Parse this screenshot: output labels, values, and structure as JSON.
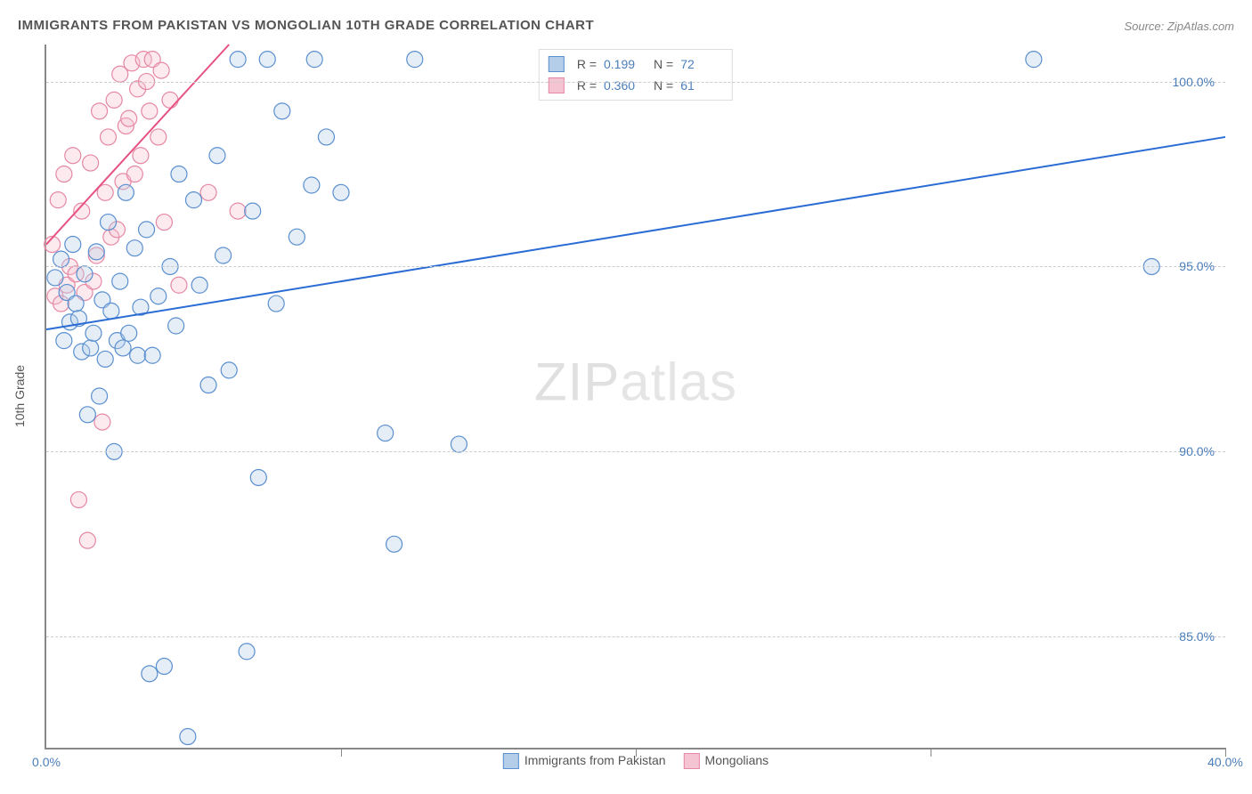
{
  "title": "IMMIGRANTS FROM PAKISTAN VS MONGOLIAN 10TH GRADE CORRELATION CHART",
  "source": "Source: ZipAtlas.com",
  "watermark_bold": "ZIP",
  "watermark_thin": "atlas",
  "chart": {
    "type": "scatter",
    "xlim": [
      0,
      40
    ],
    "ylim": [
      82,
      101
    ],
    "x_ticks": [
      0,
      10,
      20,
      30,
      40
    ],
    "x_tick_labels": [
      "0.0%",
      "",
      "",
      "",
      "40.0%"
    ],
    "y_ticks": [
      85,
      90,
      95,
      100
    ],
    "y_tick_labels": [
      "85.0%",
      "90.0%",
      "95.0%",
      "100.0%"
    ],
    "y_axis_label": "10th Grade",
    "grid_color": "#cccccc",
    "background_color": "#ffffff",
    "marker_radius": 9,
    "marker_opacity": 0.35,
    "line_width": 2,
    "series": [
      {
        "name": "Immigrants from Pakistan",
        "color_fill": "#b4cde8",
        "color_stroke": "#5a8fd0",
        "line_color": "#2a6cd4",
        "R": "0.199",
        "N": "72",
        "trend": {
          "x1": 0,
          "y1": 93.3,
          "x2": 40,
          "y2": 98.5
        },
        "points": [
          [
            0.3,
            94.7
          ],
          [
            0.5,
            95.2
          ],
          [
            0.6,
            93.0
          ],
          [
            0.7,
            94.3
          ],
          [
            0.8,
            93.5
          ],
          [
            0.9,
            95.6
          ],
          [
            1.0,
            94.0
          ],
          [
            1.1,
            93.6
          ],
          [
            1.2,
            92.7
          ],
          [
            1.3,
            94.8
          ],
          [
            1.4,
            91.0
          ],
          [
            1.5,
            92.8
          ],
          [
            1.6,
            93.2
          ],
          [
            1.7,
            95.4
          ],
          [
            1.8,
            91.5
          ],
          [
            1.9,
            94.1
          ],
          [
            2.0,
            92.5
          ],
          [
            2.1,
            96.2
          ],
          [
            2.2,
            93.8
          ],
          [
            2.3,
            90.0
          ],
          [
            2.4,
            93.0
          ],
          [
            2.5,
            94.6
          ],
          [
            2.6,
            92.8
          ],
          [
            2.7,
            97.0
          ],
          [
            2.8,
            93.2
          ],
          [
            3.0,
            95.5
          ],
          [
            3.1,
            92.6
          ],
          [
            3.2,
            93.9
          ],
          [
            3.4,
            96.0
          ],
          [
            3.5,
            84.0
          ],
          [
            3.6,
            92.6
          ],
          [
            3.8,
            94.2
          ],
          [
            4.0,
            84.2
          ],
          [
            4.2,
            95.0
          ],
          [
            4.4,
            93.4
          ],
          [
            4.5,
            97.5
          ],
          [
            4.8,
            82.3
          ],
          [
            5.0,
            96.8
          ],
          [
            5.2,
            94.5
          ],
          [
            5.5,
            91.8
          ],
          [
            5.8,
            98.0
          ],
          [
            6.0,
            95.3
          ],
          [
            6.2,
            92.2
          ],
          [
            6.5,
            100.6
          ],
          [
            6.8,
            84.6
          ],
          [
            7.0,
            96.5
          ],
          [
            7.2,
            89.3
          ],
          [
            7.5,
            100.6
          ],
          [
            7.8,
            94.0
          ],
          [
            8.0,
            99.2
          ],
          [
            8.5,
            95.8
          ],
          [
            9.0,
            97.2
          ],
          [
            9.1,
            100.6
          ],
          [
            9.5,
            98.5
          ],
          [
            10.0,
            97.0
          ],
          [
            11.5,
            90.5
          ],
          [
            11.8,
            87.5
          ],
          [
            12.5,
            100.6
          ],
          [
            14.0,
            90.2
          ],
          [
            33.5,
            100.6
          ],
          [
            37.5,
            95.0
          ]
        ]
      },
      {
        "name": "Mongolians",
        "color_fill": "#f5c4d2",
        "color_stroke": "#e687a3",
        "line_color": "#e65284",
        "R": "0.360",
        "N": "61",
        "trend": {
          "x1": 0,
          "y1": 95.6,
          "x2": 6.2,
          "y2": 101
        },
        "points": [
          [
            0.2,
            95.6
          ],
          [
            0.3,
            94.2
          ],
          [
            0.4,
            96.8
          ],
          [
            0.5,
            94.0
          ],
          [
            0.6,
            97.5
          ],
          [
            0.7,
            94.5
          ],
          [
            0.8,
            95.0
          ],
          [
            0.9,
            98.0
          ],
          [
            1.0,
            94.8
          ],
          [
            1.1,
            88.7
          ],
          [
            1.2,
            96.5
          ],
          [
            1.3,
            94.3
          ],
          [
            1.4,
            87.6
          ],
          [
            1.5,
            97.8
          ],
          [
            1.6,
            94.6
          ],
          [
            1.7,
            95.3
          ],
          [
            1.8,
            99.2
          ],
          [
            1.9,
            90.8
          ],
          [
            2.0,
            97.0
          ],
          [
            2.1,
            98.5
          ],
          [
            2.2,
            95.8
          ],
          [
            2.3,
            99.5
          ],
          [
            2.4,
            96.0
          ],
          [
            2.5,
            100.2
          ],
          [
            2.6,
            97.3
          ],
          [
            2.7,
            98.8
          ],
          [
            2.8,
            99.0
          ],
          [
            2.9,
            100.5
          ],
          [
            3.0,
            97.5
          ],
          [
            3.1,
            99.8
          ],
          [
            3.2,
            98.0
          ],
          [
            3.3,
            100.6
          ],
          [
            3.4,
            100.0
          ],
          [
            3.5,
            99.2
          ],
          [
            3.6,
            100.6
          ],
          [
            3.8,
            98.5
          ],
          [
            3.9,
            100.3
          ],
          [
            4.0,
            96.2
          ],
          [
            4.2,
            99.5
          ],
          [
            4.5,
            94.5
          ],
          [
            5.5,
            97.0
          ],
          [
            6.5,
            96.5
          ]
        ]
      }
    ],
    "bottom_legend": {
      "items": [
        {
          "label": "Immigrants from Pakistan",
          "fill": "#b4cde8",
          "stroke": "#5a8fd0"
        },
        {
          "label": "Mongolians",
          "fill": "#f5c4d2",
          "stroke": "#e687a3"
        }
      ]
    }
  }
}
